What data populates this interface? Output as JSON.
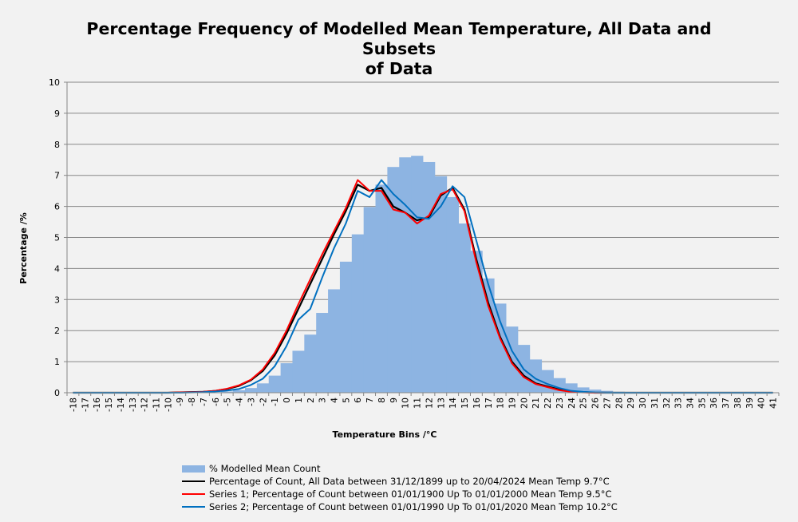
{
  "chart_data": {
    "type": "bar",
    "title_line1": "Percentage Frequency of Modelled Mean Temperature, All Data and Subsets",
    "title_line2": "of Data",
    "xlabel": "Temperature Bins /°C",
    "ylabel": "Percentage /%",
    "ylim": [
      0,
      10
    ],
    "yticks": [
      "0",
      "1",
      "2",
      "3",
      "4",
      "5",
      "6",
      "7",
      "8",
      "9",
      "10"
    ],
    "grid": true,
    "legend_position": "bottom",
    "categories": [
      "-18",
      "-17",
      "-16",
      "-15",
      "-14",
      "-13",
      "-12",
      "-11",
      "-10",
      "-9",
      "-8",
      "-7",
      "-6",
      "-5",
      "-4",
      "-3",
      "-2",
      "-1",
      "0",
      "1",
      "2",
      "3",
      "4",
      "5",
      "6",
      "7",
      "8",
      "9",
      "10",
      "11",
      "12",
      "13",
      "14",
      "15",
      "16",
      "17",
      "18",
      "19",
      "20",
      "21",
      "22",
      "23",
      "24",
      "25",
      "26",
      "27",
      "28",
      "29",
      "30",
      "31",
      "32",
      "33",
      "34",
      "35",
      "36",
      "37",
      "38",
      "39",
      "40",
      "41"
    ],
    "series": [
      {
        "name": "% Modelled Mean Count",
        "kind": "bar",
        "color": "#8db4e2",
        "values": [
          0,
          0,
          0,
          0,
          0,
          0,
          0,
          0,
          0,
          0,
          0,
          0.01,
          0.02,
          0.04,
          0.08,
          0.15,
          0.3,
          0.55,
          0.95,
          1.35,
          1.87,
          2.57,
          3.33,
          4.22,
          5.1,
          5.98,
          6.7,
          7.27,
          7.58,
          7.63,
          7.43,
          6.97,
          6.3,
          5.45,
          4.57,
          3.68,
          2.87,
          2.13,
          1.54,
          1.07,
          0.73,
          0.47,
          0.3,
          0.17,
          0.1,
          0.06,
          0.03,
          0.02,
          0.01,
          0,
          0,
          0,
          0,
          0,
          0,
          0,
          0,
          0,
          0,
          0
        ]
      },
      {
        "name": "Percentage of Count, All Data between 31/12/1899 up to 20/04/2024 Mean Temp 9.7°C",
        "kind": "line",
        "color": "#000000",
        "values": [
          0,
          0,
          0,
          0,
          0,
          0,
          0,
          0,
          0,
          0.01,
          0.02,
          0.03,
          0.06,
          0.12,
          0.22,
          0.4,
          0.7,
          1.2,
          1.9,
          2.7,
          3.5,
          4.3,
          5.1,
          5.85,
          6.7,
          6.5,
          6.6,
          6.0,
          5.8,
          5.55,
          5.65,
          6.35,
          6.6,
          5.9,
          4.3,
          2.9,
          1.8,
          1.0,
          0.55,
          0.3,
          0.2,
          0.1,
          0.04,
          0.02,
          0,
          0,
          0,
          0,
          0,
          0,
          0,
          0,
          0,
          0,
          0,
          0,
          0,
          0,
          0,
          0
        ]
      },
      {
        "name": "Series 1; Percentage of Count between 01/01/1900 Up To 01/01/2000 Mean Temp 9.5°C",
        "kind": "line",
        "color": "#ff0000",
        "values": [
          0,
          0,
          0,
          0,
          0,
          0,
          0,
          0,
          0,
          0.01,
          0.02,
          0.03,
          0.06,
          0.13,
          0.24,
          0.42,
          0.75,
          1.28,
          2.0,
          2.85,
          3.65,
          4.45,
          5.2,
          5.95,
          6.85,
          6.5,
          6.5,
          5.9,
          5.8,
          5.45,
          5.7,
          6.4,
          6.55,
          5.85,
          4.2,
          2.8,
          1.75,
          0.95,
          0.5,
          0.28,
          0.18,
          0.08,
          0.03,
          0.01,
          0,
          0,
          0,
          0,
          0,
          0,
          0,
          0,
          0,
          0,
          0,
          0,
          0,
          0,
          0,
          0
        ]
      },
      {
        "name": "Series 2; Percentage of Count between 01/01/1990 Up To 01/01/2020 Mean Temp 10.2°C",
        "kind": "line",
        "color": "#0070c0",
        "values": [
          0,
          0,
          0,
          0,
          0,
          0,
          0,
          0,
          0,
          0,
          0.01,
          0.02,
          0.04,
          0.07,
          0.12,
          0.25,
          0.45,
          0.85,
          1.5,
          2.35,
          2.7,
          3.7,
          4.65,
          5.45,
          6.5,
          6.3,
          6.85,
          6.4,
          6.05,
          5.65,
          5.6,
          6.0,
          6.65,
          6.3,
          4.9,
          3.5,
          2.3,
          1.35,
          0.75,
          0.45,
          0.28,
          0.15,
          0.06,
          0.03,
          0.01,
          0,
          0,
          0,
          0,
          0,
          0,
          0,
          0,
          0,
          0,
          0,
          0,
          0,
          0,
          0
        ]
      }
    ]
  }
}
